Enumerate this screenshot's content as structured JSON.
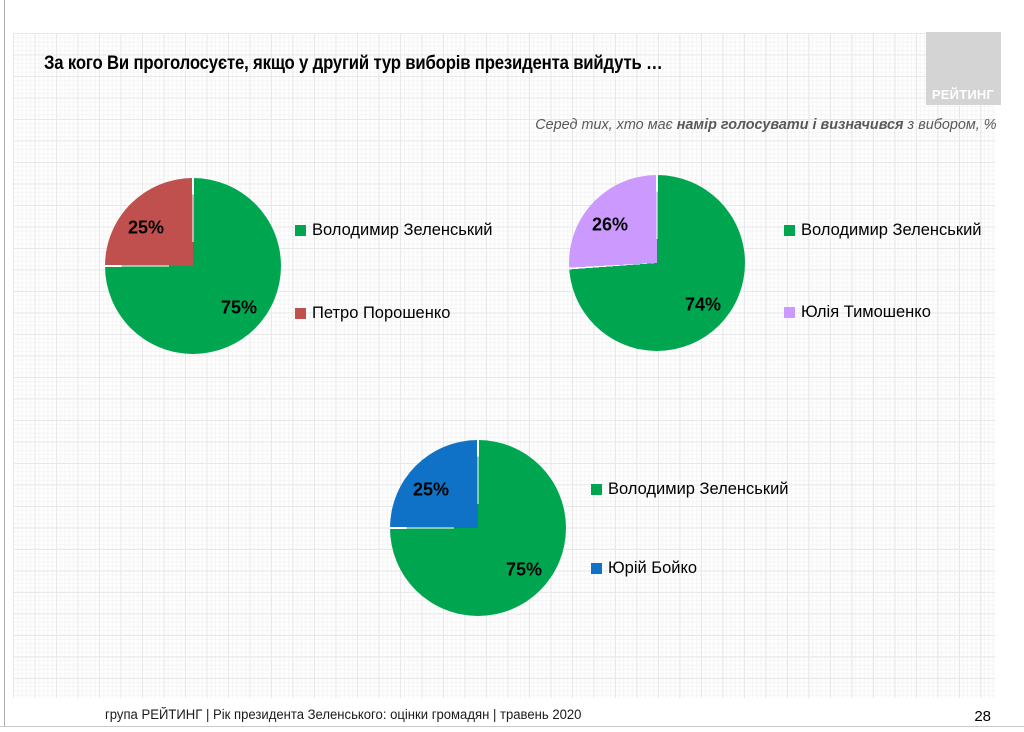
{
  "slide": {
    "title": "За кого Ви проголосуєте, якщо у другий тур виборів президента вийдуть …",
    "subtitle": {
      "prefix": "Серед тих, хто має ",
      "bold": "намір голосувати і визначився",
      "suffix": " з вибором, %"
    },
    "logo_text": "РЕЙТИНГ",
    "footer": "група РЕЙТИНГ |  Рік президента Зеленського: оцінки громадян | травень 2020",
    "page_number": "28"
  },
  "colors": {
    "green": "#00A64F",
    "red": "#C0504D",
    "lavender": "#CC99FF",
    "blue": "#0F72C6",
    "subtitle_gray": "#595959",
    "logo_bg": "#D2D2D2"
  },
  "chart_data": [
    {
      "type": "pie",
      "labels": [
        "Володимир Зеленський",
        "Петро Порошенко"
      ],
      "values": [
        75,
        25
      ],
      "value_labels": [
        "75%",
        "25%"
      ],
      "colors": [
        "#00A64F",
        "#C0504D"
      ],
      "start_angle_deg": 0,
      "direction": "clockwise",
      "legend_position": "right"
    },
    {
      "type": "pie",
      "labels": [
        "Володимир Зеленський",
        "Юлія Тимошенко"
      ],
      "values": [
        74,
        26
      ],
      "value_labels": [
        "74%",
        "26%"
      ],
      "colors": [
        "#00A64F",
        "#CC99FF"
      ],
      "start_angle_deg": 0,
      "direction": "clockwise",
      "legend_position": "right"
    },
    {
      "type": "pie",
      "labels": [
        "Володимир Зеленський",
        "Юрій Бойко"
      ],
      "values": [
        75,
        25
      ],
      "value_labels": [
        "75%",
        "25%"
      ],
      "colors": [
        "#00A64F",
        "#0F72C6"
      ],
      "start_angle_deg": 0,
      "direction": "clockwise",
      "legend_position": "right"
    }
  ]
}
